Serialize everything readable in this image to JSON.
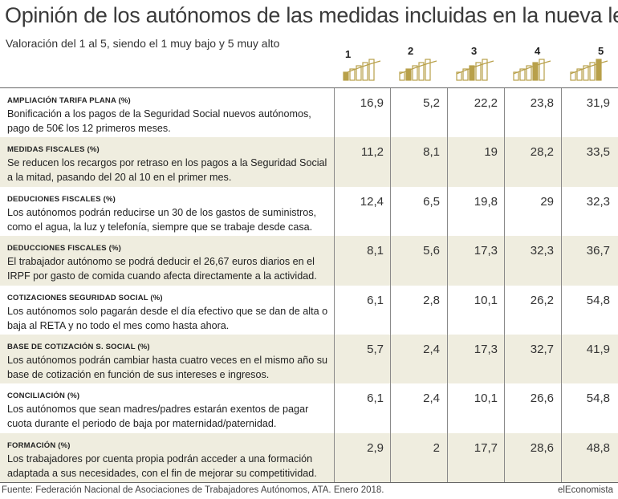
{
  "header": {
    "title": "Opinión de los autónomos de las medidas incluidas en la nueva ley",
    "subtitle": "Valoración del 1 al 5, siendo el 1 muy bajo y 5 muy alto"
  },
  "colors": {
    "gold": "#b8a04a",
    "shade": "#efeddf",
    "line": "#8a8a8a"
  },
  "rating_icons": [
    "1",
    "2",
    "3",
    "4",
    "5"
  ],
  "chart_data": {
    "type": "table",
    "columns": [
      "1",
      "2",
      "3",
      "4",
      "5"
    ],
    "rows": [
      {
        "head": "AMPLIACIÓN TARIFA PLANA (%)",
        "desc": "Bonificación a los pagos de la Seguridad Social nuevos autónomos, pago de 50€ los 12 primeros meses.",
        "values": [
          "16,9",
          "5,2",
          "22,2",
          "23,8",
          "31,9"
        ]
      },
      {
        "head": "MEDIDAS FISCALES (%)",
        "desc": "Se reducen los recargos por retraso en los pagos a la Seguridad Social a la mitad, pasando del 20 al 10 en el primer mes.",
        "values": [
          "11,2",
          "8,1",
          "19",
          "28,2",
          "33,5"
        ]
      },
      {
        "head": "DEDUCIONES FISCALES (%)",
        "desc": "Los autónomos podrán reducirse un 30 de los gastos de suministros, como el agua, la luz y telefonía, siempre que se trabaje desde casa.",
        "values": [
          "12,4",
          "6,5",
          "19,8",
          "29",
          "32,3"
        ]
      },
      {
        "head": "DEDUCCIONES FISCALES (%)",
        "desc": "El trabajador autónomo se podrá deducir el 26,67 euros diarios en el IRPF por gasto de comida cuando afecta directamente a la actividad.",
        "values": [
          "8,1",
          "5,6",
          "17,3",
          "32,3",
          "36,7"
        ]
      },
      {
        "head": "COTIZACIONES SEGURIDAD SOCIAL (%)",
        "desc": "Los autónomos solo pagarán desde el día efectivo que se dan de alta o baja al RETA y no todo el mes como hasta ahora.",
        "values": [
          "6,1",
          "2,8",
          "10,1",
          "26,2",
          "54,8"
        ]
      },
      {
        "head": "BASE DE COTIZACIÓN S. SOCIAL (%)",
        "desc": "Los autónomos podrán cambiar hasta cuatro veces en el mismo año su base de cotización en función de sus intereses e ingresos.",
        "values": [
          "5,7",
          "2,4",
          "17,3",
          "32,7",
          "41,9"
        ]
      },
      {
        "head": "CONCILIACIÓN (%)",
        "desc": "Los autónomos que sean madres/padres estarán exentos de pagar cuota durante el periodo de baja por maternidad/paternidad.",
        "values": [
          "6,1",
          "2,4",
          "10,1",
          "26,6",
          "54,8"
        ]
      },
      {
        "head": "FORMACIÓN (%)",
        "desc": "Los trabajadores por cuenta propia podrán acceder a una formación adaptada a sus necesidades, con el fin de mejorar su competitividad.",
        "values": [
          "2,9",
          "2",
          "17,7",
          "28,6",
          "48,8"
        ]
      }
    ]
  },
  "footer": {
    "source": "Fuente: Federación Nacional de Asociaciones de Trabajadores Autónomos, ATA. Enero 2018.",
    "brand": "elEconomista"
  }
}
